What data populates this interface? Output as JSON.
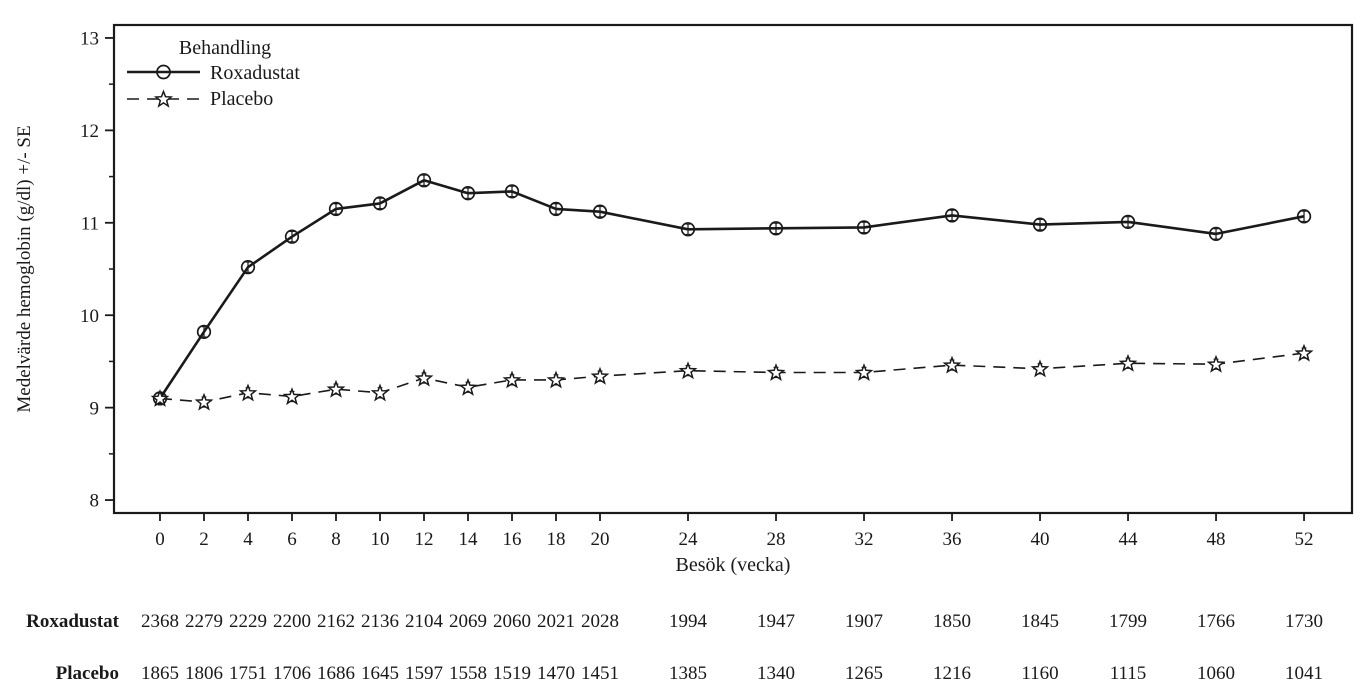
{
  "figure": {
    "background": "#ffffff",
    "ink_color": "#1a1a1a"
  },
  "chart_data": {
    "type": "line",
    "title": "",
    "xlabel": "Besök (vecka)",
    "ylabel": "Medelvärde hemoglobin (g/dl) +/- SE",
    "legend": {
      "title": "Behandling",
      "position": "top-left-inside",
      "entries": [
        "Roxadustat",
        "Placebo"
      ]
    },
    "x_ticks": [
      0,
      2,
      4,
      6,
      8,
      10,
      12,
      14,
      16,
      18,
      20,
      24,
      28,
      32,
      36,
      40,
      44,
      48,
      52
    ],
    "y_ticks": [
      8,
      9,
      10,
      11,
      12,
      13
    ],
    "y_minor_ticks": [
      8.5,
      9.5,
      10.5,
      11.5,
      12.5
    ],
    "xlim": [
      -2.09,
      54.18
    ],
    "ylim": [
      7.86,
      13.14
    ],
    "grid": false,
    "error_bars": "SE (small, +/- shown at each point)",
    "x": [
      0,
      2,
      4,
      6,
      8,
      10,
      12,
      14,
      16,
      18,
      20,
      24,
      28,
      32,
      36,
      40,
      44,
      48,
      52
    ],
    "series": [
      {
        "name": "Roxadustat",
        "marker": "circle",
        "line": "solid",
        "color": "#1a1a1a",
        "values": [
          9.1,
          9.82,
          10.52,
          10.85,
          11.15,
          11.21,
          11.46,
          11.32,
          11.34,
          11.15,
          11.12,
          10.93,
          10.94,
          10.95,
          11.08,
          10.98,
          11.01,
          10.88,
          11.07
        ]
      },
      {
        "name": "Placebo",
        "marker": "star",
        "line": "dashed",
        "color": "#1a1a1a",
        "values": [
          9.1,
          9.06,
          9.16,
          9.12,
          9.2,
          9.16,
          9.32,
          9.22,
          9.3,
          9.3,
          9.34,
          9.4,
          9.38,
          9.38,
          9.46,
          9.42,
          9.48,
          9.47,
          9.59
        ]
      }
    ],
    "at_risk": {
      "rows": [
        {
          "label": "Roxadustat",
          "counts": [
            2368,
            2279,
            2229,
            2200,
            2162,
            2136,
            2104,
            2069,
            2060,
            2021,
            2028,
            1994,
            1947,
            1907,
            1850,
            1845,
            1799,
            1766,
            1730
          ]
        },
        {
          "label": "Placebo",
          "counts": [
            1865,
            1806,
            1751,
            1706,
            1686,
            1645,
            1597,
            1558,
            1519,
            1470,
            1451,
            1385,
            1340,
            1265,
            1216,
            1160,
            1115,
            1060,
            1041
          ]
        }
      ]
    }
  }
}
